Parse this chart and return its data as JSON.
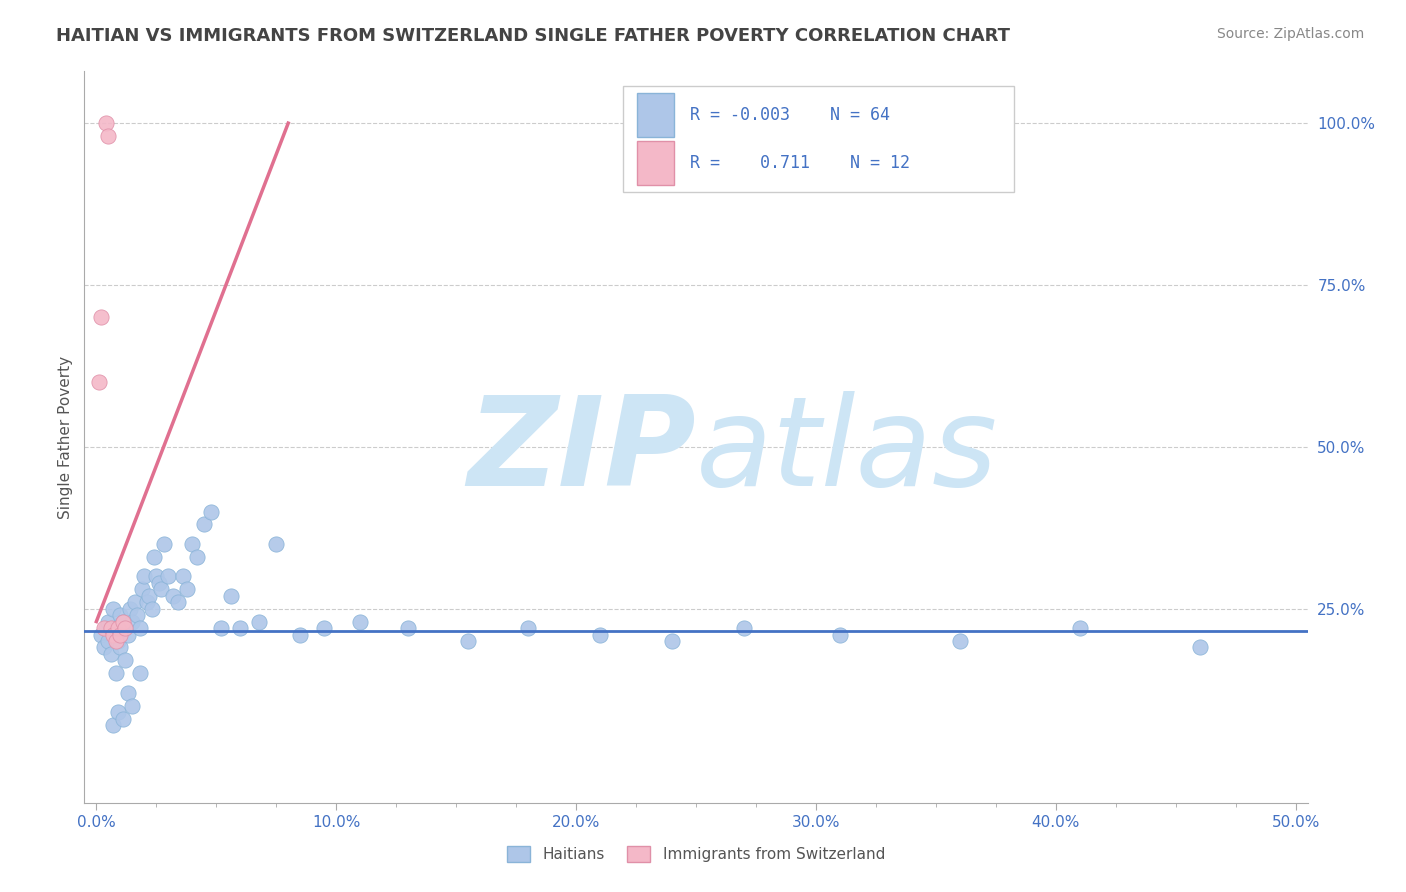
{
  "title": "HAITIAN VS IMMIGRANTS FROM SWITZERLAND SINGLE FATHER POVERTY CORRELATION CHART",
  "source": "Source: ZipAtlas.com",
  "ylabel": "Single Father Poverty",
  "xlim": [
    -0.005,
    0.505
  ],
  "ylim": [
    -0.05,
    1.08
  ],
  "xticks": [
    0.0,
    0.1,
    0.2,
    0.3,
    0.4,
    0.5
  ],
  "xticklabels": [
    "0.0%",
    "10.0%",
    "20.0%",
    "30.0%",
    "40.0%",
    "50.0%"
  ],
  "yticks": [
    0.25,
    0.5,
    0.75,
    1.0
  ],
  "yticklabels": [
    "25.0%",
    "50.0%",
    "75.0%",
    "100.0%"
  ],
  "legend_entries": [
    {
      "label": "Haitians",
      "R": "-0.003",
      "N": "64",
      "color": "#aec6e8"
    },
    {
      "label": "Immigrants from Switzerland",
      "R": "0.711",
      "N": "12",
      "color": "#f4b8c8"
    }
  ],
  "blue_scatter_x": [
    0.002,
    0.003,
    0.004,
    0.005,
    0.005,
    0.006,
    0.007,
    0.008,
    0.008,
    0.009,
    0.01,
    0.01,
    0.011,
    0.012,
    0.012,
    0.013,
    0.014,
    0.015,
    0.016,
    0.017,
    0.018,
    0.019,
    0.02,
    0.021,
    0.022,
    0.023,
    0.024,
    0.025,
    0.026,
    0.027,
    0.028,
    0.03,
    0.032,
    0.034,
    0.036,
    0.038,
    0.04,
    0.042,
    0.045,
    0.048,
    0.052,
    0.056,
    0.06,
    0.068,
    0.075,
    0.085,
    0.095,
    0.11,
    0.13,
    0.155,
    0.18,
    0.21,
    0.24,
    0.27,
    0.31,
    0.36,
    0.41,
    0.46,
    0.007,
    0.009,
    0.011,
    0.013,
    0.015,
    0.018
  ],
  "blue_scatter_y": [
    0.21,
    0.19,
    0.22,
    0.23,
    0.2,
    0.18,
    0.25,
    0.22,
    0.15,
    0.2,
    0.19,
    0.24,
    0.23,
    0.22,
    0.17,
    0.21,
    0.25,
    0.23,
    0.26,
    0.24,
    0.22,
    0.28,
    0.3,
    0.26,
    0.27,
    0.25,
    0.33,
    0.3,
    0.29,
    0.28,
    0.35,
    0.3,
    0.27,
    0.26,
    0.3,
    0.28,
    0.35,
    0.33,
    0.38,
    0.4,
    0.22,
    0.27,
    0.22,
    0.23,
    0.35,
    0.21,
    0.22,
    0.23,
    0.22,
    0.2,
    0.22,
    0.21,
    0.2,
    0.22,
    0.21,
    0.2,
    0.22,
    0.19,
    0.07,
    0.09,
    0.08,
    0.12,
    0.1,
    0.15
  ],
  "pink_scatter_x": [
    0.001,
    0.002,
    0.003,
    0.004,
    0.005,
    0.006,
    0.007,
    0.008,
    0.009,
    0.01,
    0.011,
    0.012
  ],
  "pink_scatter_y": [
    0.6,
    0.7,
    0.22,
    1.0,
    0.98,
    0.22,
    0.21,
    0.2,
    0.22,
    0.21,
    0.23,
    0.22
  ],
  "blue_trend_x": [
    -0.005,
    0.505
  ],
  "blue_trend_y": [
    0.215,
    0.215
  ],
  "pink_trend_x": [
    0.0,
    0.08
  ],
  "pink_trend_y": [
    0.23,
    1.0
  ],
  "watermark_zip": "ZIP",
  "watermark_atlas": "atlas",
  "watermark_color": "#cde5f5",
  "background_color": "#ffffff",
  "grid_color": "#cccccc",
  "title_color": "#444444",
  "axis_label_color": "#555555",
  "tick_color": "#4472c4",
  "legend_text_color": "#4472c4",
  "source_color": "#888888",
  "blue_edge": "#8ab4d8",
  "pink_edge": "#e090a8",
  "blue_line": "#4472c4",
  "pink_line": "#e07090"
}
